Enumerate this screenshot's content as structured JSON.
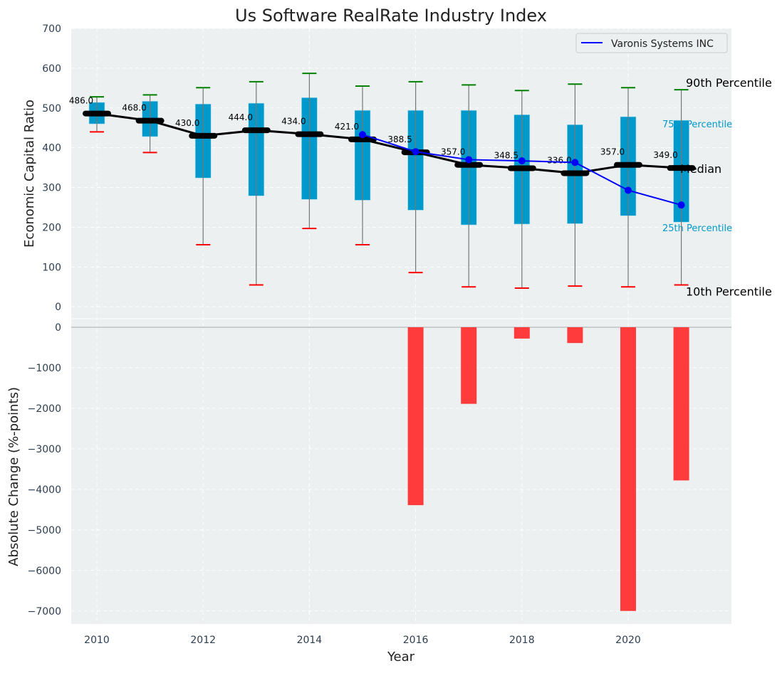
{
  "chart_data": [
    {
      "type": "box",
      "title": "Us Software RealRate Industry Index",
      "ylabel": "Economic Capital Ratio",
      "ylim": [
        -30,
        700
      ],
      "yticks": [
        0,
        100,
        200,
        300,
        400,
        500,
        600,
        700
      ],
      "years": [
        2010,
        2011,
        2012,
        2013,
        2014,
        2015,
        2016,
        2017,
        2018,
        2019,
        2020,
        2021
      ],
      "p90": [
        528,
        533,
        551,
        566,
        587,
        555,
        566,
        558,
        544,
        560,
        551,
        546
      ],
      "p75": [
        514,
        517,
        510,
        512,
        526,
        494,
        494,
        494,
        483,
        458,
        478,
        469
      ],
      "median": [
        486,
        468,
        430,
        444,
        434,
        421,
        388.5,
        357,
        348.5,
        336,
        357,
        349
      ],
      "median_labels": [
        "486.0",
        "468.0",
        "430.0",
        "444.0",
        "434.0",
        "421.0",
        "388.5",
        "357.0",
        "348.5",
        "336.0",
        "357.0",
        "349.0"
      ],
      "p25": [
        460,
        428,
        324,
        279,
        270,
        268,
        243,
        206,
        208,
        209,
        229,
        213
      ],
      "p10": [
        440,
        388,
        156,
        55,
        197,
        156,
        86,
        50,
        47,
        52,
        50,
        55
      ],
      "company": {
        "name": "Varonis Systems INC",
        "years": [
          2015,
          2016,
          2017,
          2018,
          2019,
          2020,
          2021
        ],
        "values": [
          433,
          390,
          370,
          367,
          363,
          293,
          256
        ]
      },
      "annotations": {
        "p90": "90th Percentile",
        "p75": "75th Percentile",
        "median": "Median",
        "p25": "25th Percentile",
        "p10": "10th Percentile"
      },
      "legend": "top-right"
    },
    {
      "type": "bar",
      "ylabel": "Absolute Change (%-points)",
      "xlabel": "Year",
      "ylim": [
        -7320,
        210
      ],
      "yticks": [
        0,
        -1000,
        -2000,
        -3000,
        -4000,
        -5000,
        -6000,
        -7000
      ],
      "ytick_labels": [
        "0",
        "−1000",
        "−2000",
        "−3000",
        "−4000",
        "−5000",
        "−6000",
        "−7000"
      ],
      "xticks": [
        2010,
        2012,
        2014,
        2016,
        2018,
        2020
      ],
      "years": [
        2016,
        2017,
        2018,
        2019,
        2020,
        2021
      ],
      "values": [
        -4390,
        -1890,
        -280,
        -390,
        -7000,
        -3780
      ],
      "color": "#ff3b3b"
    }
  ],
  "colors": {
    "box": "#0099cc",
    "median": "#000000",
    "company": "#0000ff",
    "p90": "#008000",
    "p10": "#ff0000",
    "bg": "#ecf0f0"
  }
}
